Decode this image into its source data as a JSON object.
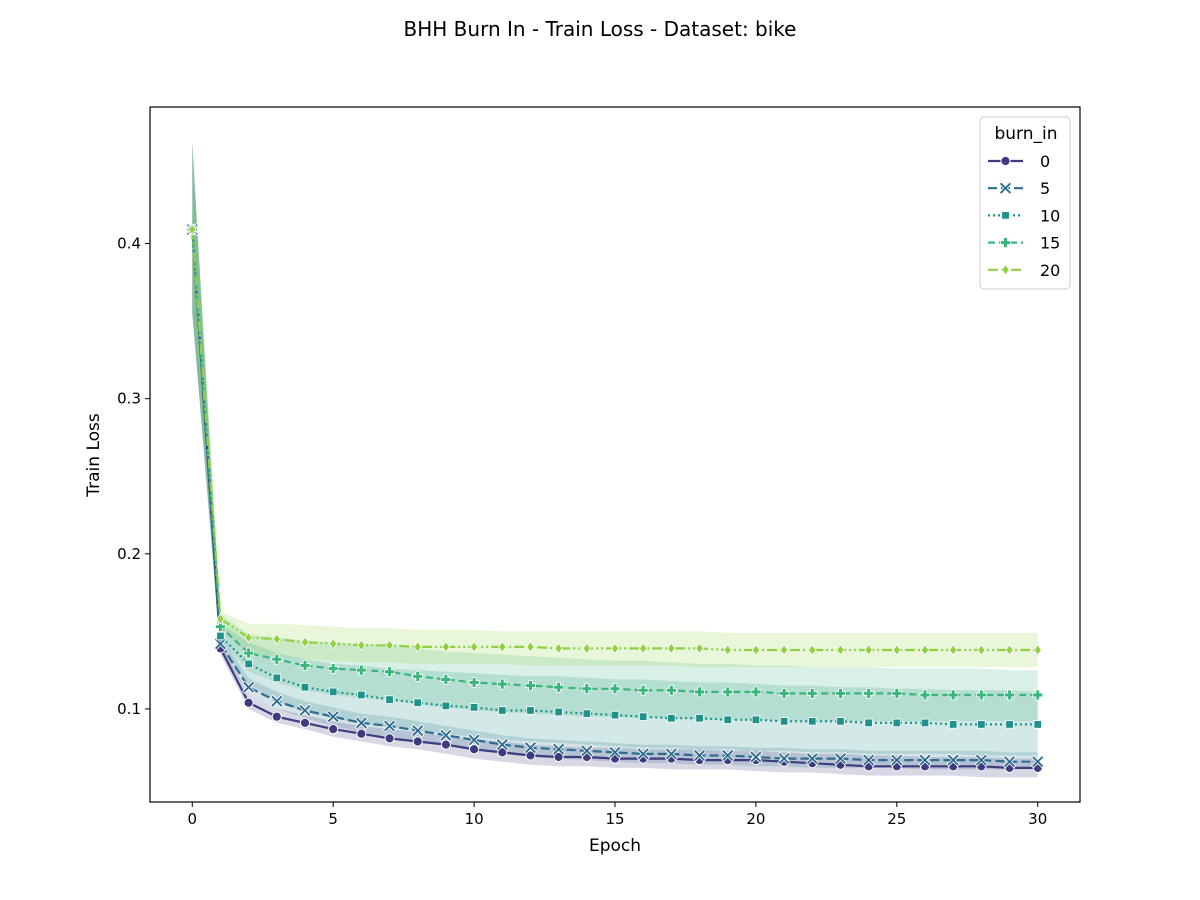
{
  "chart_data": {
    "type": "line",
    "title": "BHH Burn In - Train Loss - Dataset: bike",
    "xlabel": "Epoch",
    "ylabel": "Train Loss",
    "xlim": [
      -1.5,
      31.5
    ],
    "ylim": [
      0.04,
      0.488
    ],
    "xticks": [
      0,
      5,
      10,
      15,
      20,
      25,
      30
    ],
    "yticks": [
      0.1,
      0.2,
      0.3,
      0.4
    ],
    "grid": false,
    "legend": {
      "title": "burn_in",
      "placement": "top-right"
    },
    "x": [
      0,
      1,
      2,
      3,
      4,
      5,
      6,
      7,
      8,
      9,
      10,
      11,
      12,
      13,
      14,
      15,
      16,
      17,
      18,
      19,
      20,
      21,
      22,
      23,
      24,
      25,
      26,
      27,
      28,
      29,
      30
    ],
    "series": [
      {
        "name": "0",
        "color": "#3e3b7e",
        "dash": "",
        "marker": "circle",
        "values": [
          0.409,
          0.139,
          0.104,
          0.095,
          0.091,
          0.087,
          0.084,
          0.081,
          0.079,
          0.077,
          0.074,
          0.072,
          0.07,
          0.069,
          0.069,
          0.068,
          0.068,
          0.068,
          0.067,
          0.067,
          0.067,
          0.066,
          0.065,
          0.064,
          0.063,
          0.063,
          0.063,
          0.063,
          0.063,
          0.062,
          0.062
        ],
        "lower": [
          0.355,
          0.135,
          0.1,
          0.091,
          0.087,
          0.082,
          0.079,
          0.076,
          0.074,
          0.071,
          0.068,
          0.066,
          0.064,
          0.063,
          0.063,
          0.062,
          0.062,
          0.061,
          0.061,
          0.061,
          0.06,
          0.059,
          0.059,
          0.058,
          0.057,
          0.057,
          0.057,
          0.057,
          0.056,
          0.056,
          0.056
        ],
        "upper": [
          0.465,
          0.143,
          0.109,
          0.1,
          0.096,
          0.092,
          0.089,
          0.087,
          0.085,
          0.082,
          0.08,
          0.079,
          0.077,
          0.076,
          0.075,
          0.075,
          0.074,
          0.074,
          0.074,
          0.073,
          0.073,
          0.072,
          0.071,
          0.071,
          0.07,
          0.07,
          0.069,
          0.069,
          0.069,
          0.068,
          0.068
        ]
      },
      {
        "name": "5",
        "color": "#2f6c8e",
        "dash": "9,4",
        "marker": "x",
        "values": [
          0.409,
          0.142,
          0.114,
          0.105,
          0.099,
          0.095,
          0.091,
          0.089,
          0.086,
          0.083,
          0.08,
          0.077,
          0.075,
          0.074,
          0.073,
          0.072,
          0.071,
          0.071,
          0.07,
          0.07,
          0.069,
          0.068,
          0.068,
          0.068,
          0.067,
          0.067,
          0.067,
          0.067,
          0.067,
          0.066,
          0.066
        ],
        "lower": [
          0.355,
          0.138,
          0.109,
          0.1,
          0.094,
          0.089,
          0.085,
          0.082,
          0.079,
          0.076,
          0.073,
          0.071,
          0.069,
          0.068,
          0.067,
          0.066,
          0.065,
          0.065,
          0.064,
          0.064,
          0.063,
          0.063,
          0.062,
          0.062,
          0.062,
          0.062,
          0.061,
          0.061,
          0.061,
          0.061,
          0.061
        ],
        "upper": [
          0.465,
          0.147,
          0.12,
          0.111,
          0.105,
          0.101,
          0.097,
          0.095,
          0.092,
          0.089,
          0.086,
          0.083,
          0.081,
          0.08,
          0.079,
          0.078,
          0.077,
          0.077,
          0.076,
          0.076,
          0.075,
          0.075,
          0.074,
          0.074,
          0.073,
          0.073,
          0.073,
          0.073,
          0.073,
          0.072,
          0.072
        ]
      },
      {
        "name": "10",
        "color": "#21918c",
        "dash": "2,3",
        "marker": "square",
        "values": [
          0.409,
          0.147,
          0.129,
          0.12,
          0.114,
          0.111,
          0.109,
          0.106,
          0.104,
          0.102,
          0.101,
          0.099,
          0.099,
          0.098,
          0.097,
          0.096,
          0.095,
          0.094,
          0.094,
          0.093,
          0.093,
          0.092,
          0.092,
          0.092,
          0.091,
          0.091,
          0.091,
          0.09,
          0.09,
          0.09,
          0.09
        ],
        "lower": [
          0.355,
          0.14,
          0.116,
          0.105,
          0.098,
          0.094,
          0.091,
          0.088,
          0.086,
          0.084,
          0.082,
          0.08,
          0.079,
          0.078,
          0.077,
          0.076,
          0.075,
          0.075,
          0.074,
          0.074,
          0.073,
          0.073,
          0.072,
          0.072,
          0.071,
          0.071,
          0.071,
          0.071,
          0.07,
          0.07,
          0.07
        ],
        "upper": [
          0.465,
          0.155,
          0.143,
          0.136,
          0.132,
          0.129,
          0.128,
          0.126,
          0.125,
          0.124,
          0.123,
          0.122,
          0.121,
          0.121,
          0.12,
          0.119,
          0.119,
          0.118,
          0.117,
          0.117,
          0.116,
          0.115,
          0.115,
          0.114,
          0.114,
          0.113,
          0.113,
          0.112,
          0.112,
          0.112,
          0.111
        ]
      },
      {
        "name": "15",
        "color": "#3bb67b",
        "dash": "7,4",
        "marker": "plus",
        "values": [
          0.409,
          0.153,
          0.136,
          0.132,
          0.128,
          0.126,
          0.125,
          0.124,
          0.121,
          0.119,
          0.117,
          0.116,
          0.115,
          0.114,
          0.113,
          0.113,
          0.112,
          0.112,
          0.111,
          0.111,
          0.111,
          0.11,
          0.11,
          0.11,
          0.11,
          0.11,
          0.109,
          0.109,
          0.109,
          0.109,
          0.109
        ],
        "lower": [
          0.355,
          0.145,
          0.124,
          0.117,
          0.112,
          0.109,
          0.107,
          0.106,
          0.103,
          0.101,
          0.099,
          0.098,
          0.097,
          0.096,
          0.095,
          0.095,
          0.094,
          0.094,
          0.093,
          0.093,
          0.093,
          0.092,
          0.092,
          0.092,
          0.092,
          0.092,
          0.092,
          0.092,
          0.092,
          0.092,
          0.092
        ],
        "upper": [
          0.465,
          0.161,
          0.148,
          0.146,
          0.144,
          0.143,
          0.142,
          0.141,
          0.139,
          0.137,
          0.136,
          0.135,
          0.134,
          0.133,
          0.132,
          0.131,
          0.131,
          0.13,
          0.129,
          0.129,
          0.128,
          0.128,
          0.127,
          0.127,
          0.127,
          0.126,
          0.126,
          0.126,
          0.126,
          0.125,
          0.125
        ]
      },
      {
        "name": "20",
        "color": "#8fd142",
        "dash": "10,3,2,3,2,3",
        "marker": "diamond",
        "values": [
          0.409,
          0.158,
          0.146,
          0.145,
          0.143,
          0.142,
          0.141,
          0.141,
          0.14,
          0.14,
          0.14,
          0.14,
          0.14,
          0.139,
          0.139,
          0.139,
          0.139,
          0.139,
          0.139,
          0.138,
          0.138,
          0.138,
          0.138,
          0.138,
          0.138,
          0.138,
          0.138,
          0.138,
          0.138,
          0.138,
          0.138
        ],
        "lower": [
          0.355,
          0.152,
          0.137,
          0.134,
          0.132,
          0.131,
          0.13,
          0.13,
          0.129,
          0.129,
          0.129,
          0.129,
          0.128,
          0.128,
          0.128,
          0.128,
          0.128,
          0.128,
          0.127,
          0.127,
          0.127,
          0.127,
          0.127,
          0.127,
          0.127,
          0.127,
          0.127,
          0.127,
          0.127,
          0.127,
          0.127
        ],
        "upper": [
          0.465,
          0.163,
          0.155,
          0.155,
          0.154,
          0.153,
          0.152,
          0.152,
          0.151,
          0.151,
          0.151,
          0.15,
          0.15,
          0.15,
          0.15,
          0.15,
          0.15,
          0.15,
          0.15,
          0.149,
          0.149,
          0.149,
          0.149,
          0.149,
          0.149,
          0.149,
          0.149,
          0.149,
          0.149,
          0.149,
          0.149
        ]
      }
    ]
  }
}
